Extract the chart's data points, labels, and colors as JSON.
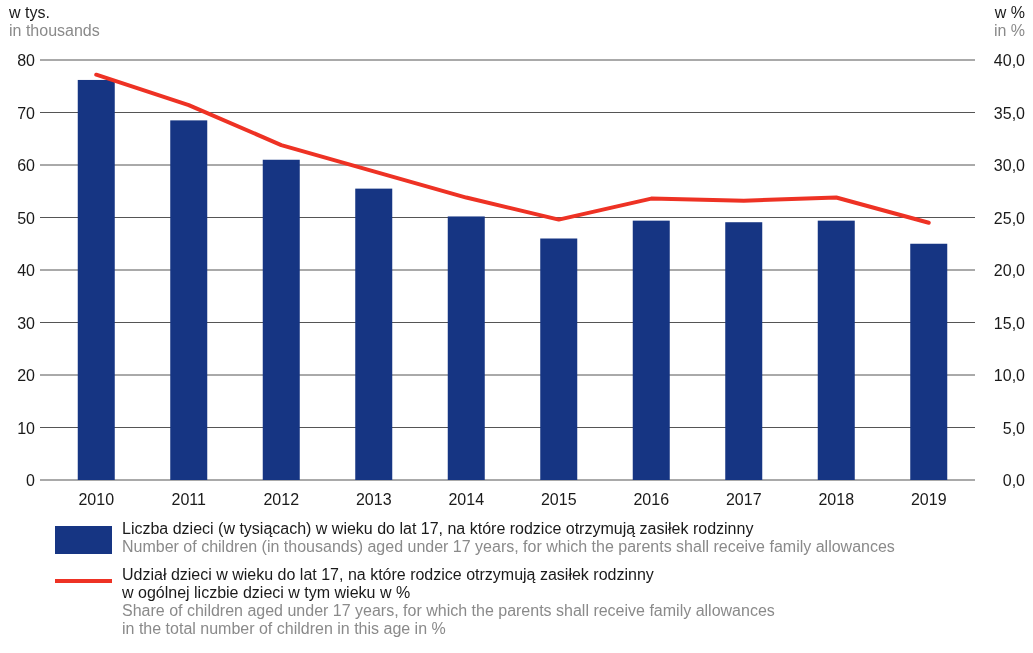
{
  "chart_data": {
    "type": "bar",
    "ylabel": "w tys.\nin thousands",
    "y2label": "w %\nin %",
    "categories": [
      "2010",
      "2011",
      "2012",
      "2013",
      "2014",
      "2015",
      "2016",
      "2017",
      "2018",
      "2019"
    ],
    "series": [
      {
        "name": "Liczba dzieci (w tysiącach) w wieku do lat 17, na które rodzice otrzymują zasiłek rodzinny\n\nNumber of children (in thousands) aged under 17 years, for which the parents shall receive family allowances",
        "color": "#163583",
        "values": [
          76.2,
          68.5,
          61.0,
          55.5,
          50.2,
          46.0,
          49.4,
          49.1,
          49.4,
          45.0
        ]
      },
      {
        "type": "line",
        "axis": "y2",
        "name": "Udział dzieci w wieku do lat 17, na które rodzice otrzymują zasiłek rodzinny\nw ogólnej liczbie dzieci w tym wieku w %\n\nShare of children aged under 17 years, for which the parents shall receive family allowances\nin the total number of children in this age in %",
        "color": "#ee3224",
        "values": [
          38.6,
          35.7,
          31.9,
          29.4,
          26.9,
          24.8,
          26.8,
          26.6,
          26.9,
          24.5
        ]
      }
    ],
    "ylim": [
      0,
      80
    ],
    "yticks": [
      0,
      10,
      20,
      30,
      40,
      50,
      60,
      70,
      80
    ],
    "y2lim": [
      0,
      40
    ],
    "y2ticks": [
      {
        "value": 0,
        "label": "0,0"
      },
      {
        "value": 5,
        "label": "5,0"
      },
      {
        "value": 10,
        "label": "10,0"
      },
      {
        "value": 15,
        "label": "15,0"
      },
      {
        "value": 20,
        "label": "20,0"
      },
      {
        "value": 25,
        "label": "25,0"
      },
      {
        "value": 30,
        "label": "30,0"
      },
      {
        "value": 35,
        "label": "35,0"
      },
      {
        "value": 40,
        "label": "40,0"
      }
    ],
    "grid": "y",
    "legend": "bottom",
    "line_style": "solid"
  }
}
